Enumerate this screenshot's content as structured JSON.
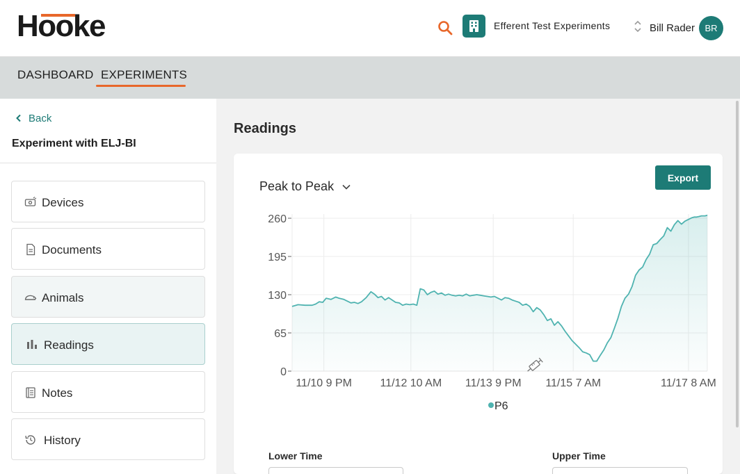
{
  "header": {
    "logo_text": "Hooke",
    "org_name": "Efferent Test Experiments",
    "user_name": "Bill Rader",
    "user_initials": "BR",
    "icons": {
      "search": "search-icon",
      "org": "building-icon",
      "switch": "sort-updown-icon"
    },
    "colors": {
      "brand_teal": "#1d7b76",
      "accent_orange": "#e8672a"
    }
  },
  "nav": {
    "tabs": [
      {
        "label": "DASHBOARD",
        "active": false
      },
      {
        "label": "EXPERIMENTS",
        "active": true
      }
    ]
  },
  "sidebar": {
    "back_label": "Back",
    "experiment_title": "Experiment with ELJ-BI",
    "items": [
      {
        "label": "Devices",
        "icon": "device-icon",
        "state": "normal"
      },
      {
        "label": "Documents",
        "icon": "document-icon",
        "state": "normal"
      },
      {
        "label": "Animals",
        "icon": "animal-icon",
        "state": "hover"
      },
      {
        "label": "Readings",
        "icon": "bar-chart-icon",
        "state": "active"
      },
      {
        "label": "Notes",
        "icon": "notes-icon",
        "state": "normal"
      },
      {
        "label": "History",
        "icon": "history-icon",
        "state": "normal"
      }
    ]
  },
  "main": {
    "title": "Readings",
    "export_label": "Export",
    "metric_selected": "Peak to Peak",
    "lower_time_label": "Lower Time",
    "upper_time_label": "Upper Time"
  },
  "chart_data": {
    "type": "area",
    "title": "",
    "xlabel": "",
    "ylabel": "",
    "ylim": [
      0,
      260
    ],
    "y_ticks": [
      0,
      65,
      130,
      195,
      260
    ],
    "x_tick_labels": [
      "11/10 9 PM",
      "11/12 10 AM",
      "11/13 9 PM",
      "11/15 7 AM",
      "11/17 8 AM"
    ],
    "x_tick_hours": [
      21,
      58,
      93,
      127,
      176
    ],
    "legend": "bottom-center",
    "grid": true,
    "line_color": "#4fb3b0",
    "annotation_icon": "syringe-icon",
    "annotation_hour": 110,
    "series": [
      {
        "name": "P6",
        "x": [
          7.5,
          10,
          13,
          16,
          17.5,
          19,
          20.5,
          22,
          24,
          26,
          27.5,
          29.5,
          31,
          32.5,
          34,
          35.5,
          37,
          39,
          41,
          42.5,
          44,
          45.5,
          47,
          48.5,
          50,
          51.5,
          53,
          54.5,
          56,
          57.5,
          59,
          60.5,
          62,
          63.5,
          65,
          66.5,
          68,
          69.5,
          71,
          72.5,
          74,
          75.5,
          77,
          78.5,
          80,
          81.5,
          83,
          84.5,
          86,
          87.5,
          89,
          90.5,
          92,
          93.5,
          95,
          96.5,
          98,
          99.5,
          101,
          102.5,
          104,
          105.5,
          107,
          108.5,
          110,
          111.5,
          113,
          114.5,
          116,
          117.5,
          119,
          120.5,
          122,
          123.5,
          125,
          126.5,
          128,
          129.5,
          131,
          132.5,
          134,
          135.5,
          137,
          138.5,
          140,
          141.5,
          143,
          144.5,
          146,
          147.5,
          149,
          150.5,
          152,
          153.5,
          155,
          156.5,
          158,
          159.5,
          161,
          162.5,
          164,
          165.5,
          167,
          168.5,
          170,
          171.5,
          173,
          174.5,
          176,
          177.5,
          178.5,
          179.5,
          180.5,
          181.5,
          183,
          184
        ],
        "values": [
          110,
          113,
          112,
          112,
          114,
          118,
          117,
          124,
          122,
          126,
          124,
          122,
          119,
          116,
          117,
          115,
          118,
          125,
          135,
          131,
          125,
          127,
          121,
          125,
          121,
          117,
          116,
          112,
          114,
          113,
          114,
          112,
          140,
          138,
          130,
          134,
          136,
          131,
          133,
          129,
          131,
          129,
          128,
          129,
          128,
          131,
          128,
          129,
          130,
          129,
          128,
          127,
          126,
          127,
          124,
          121,
          125,
          124,
          121,
          119,
          117,
          112,
          114,
          110,
          101,
          108,
          104,
          96,
          86,
          89,
          78,
          84,
          77,
          68,
          60,
          52,
          46,
          40,
          33,
          31,
          28,
          17,
          17,
          27,
          36,
          48,
          57,
          73,
          90,
          110,
          124,
          131,
          144,
          163,
          172,
          177,
          190,
          199,
          215,
          217,
          224,
          230,
          244,
          238,
          249,
          256,
          250,
          255,
          258,
          261,
          262,
          262,
          263,
          264,
          264,
          265
        ]
      }
    ]
  }
}
